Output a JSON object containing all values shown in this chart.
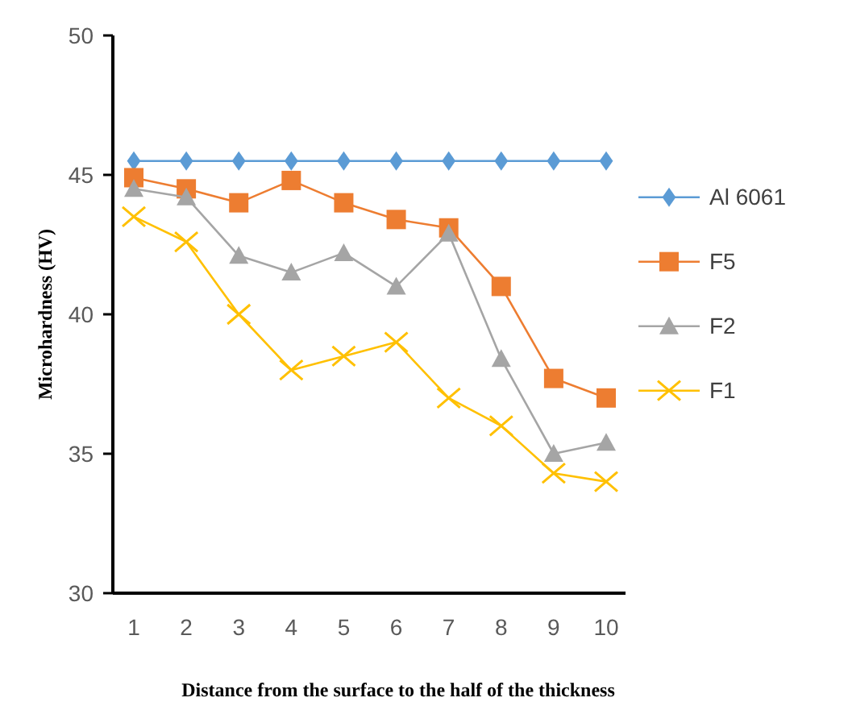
{
  "chart_data": {
    "type": "line",
    "xlabel": "Distance from the surface to the half of the thickness",
    "ylabel": "Microhardness (HV)",
    "categories": [
      "1",
      "2",
      "3",
      "4",
      "5",
      "6",
      "7",
      "8",
      "9",
      "10"
    ],
    "ylim": [
      30,
      50
    ],
    "yticks": [
      30,
      35,
      40,
      45,
      50
    ],
    "grid": false,
    "legend": "right",
    "series": [
      {
        "name": "Al 6061",
        "color": "#5b9bd5",
        "marker": "diamond",
        "values": [
          45.5,
          45.5,
          45.5,
          45.5,
          45.5,
          45.5,
          45.5,
          45.5,
          45.5,
          45.5
        ]
      },
      {
        "name": "F5",
        "color": "#ed7d31",
        "marker": "square",
        "values": [
          44.9,
          44.5,
          44.0,
          44.8,
          44.0,
          43.4,
          43.1,
          41.0,
          37.7,
          37.0
        ]
      },
      {
        "name": "F2",
        "color": "#a5a5a5",
        "marker": "triangle",
        "values": [
          44.5,
          44.2,
          42.1,
          41.5,
          42.2,
          41.0,
          42.9,
          38.4,
          35.0,
          35.4
        ]
      },
      {
        "name": "F1",
        "color": "#ffc000",
        "marker": "cross",
        "values": [
          43.5,
          42.6,
          40.0,
          38.0,
          38.5,
          39.0,
          37.0,
          36.0,
          34.3,
          34.0
        ]
      }
    ]
  }
}
